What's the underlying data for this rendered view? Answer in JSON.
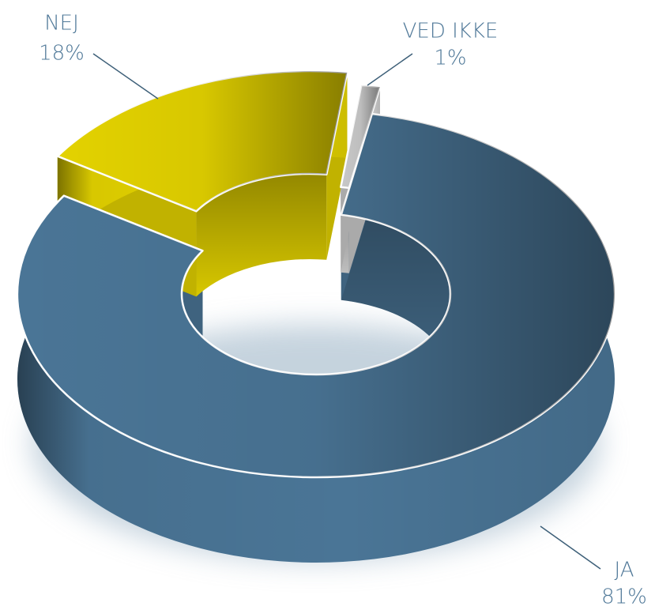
{
  "chart_data": {
    "type": "donut",
    "categories": [
      "JA",
      "NEJ",
      "VED IKKE"
    ],
    "values": [
      81,
      18,
      1
    ],
    "value_labels": [
      "81%",
      "18%",
      "1%"
    ],
    "colors": [
      "#4a7596",
      "#e3d200",
      "#c8c8c8"
    ]
  }
}
